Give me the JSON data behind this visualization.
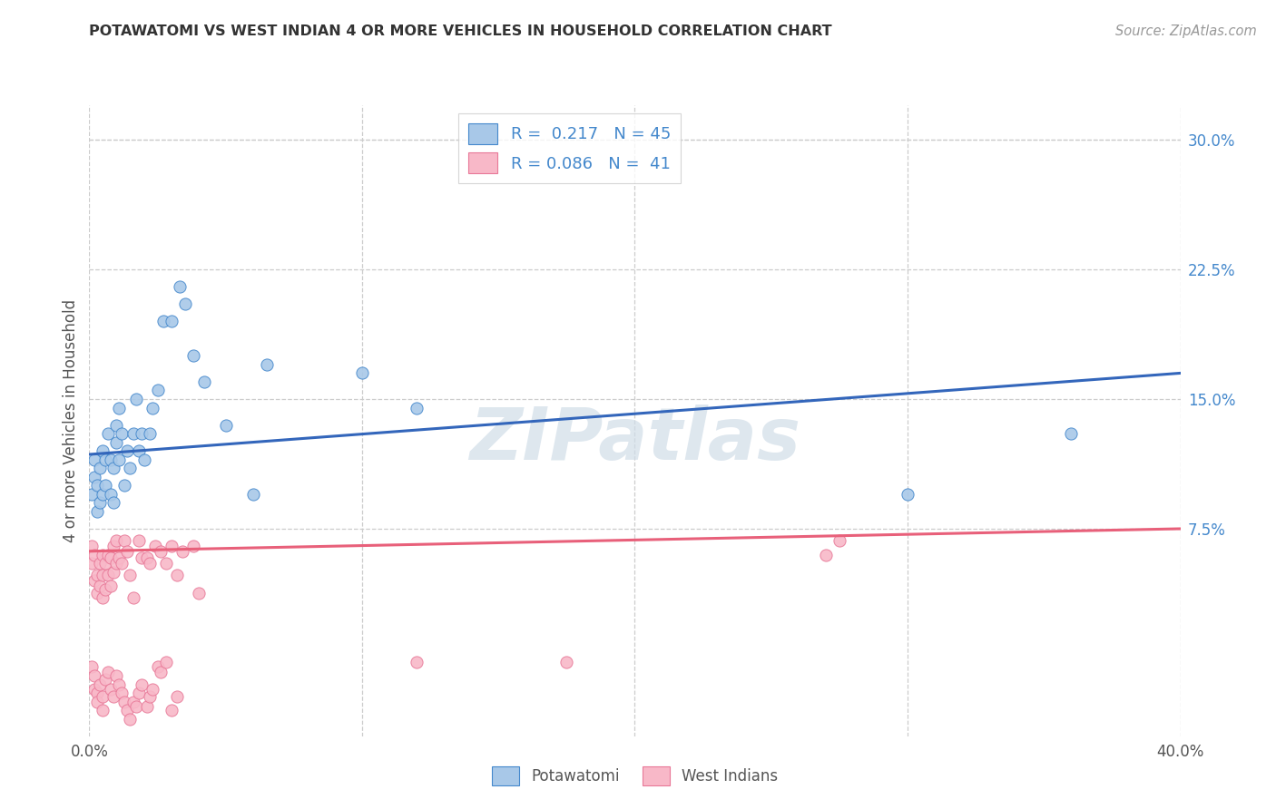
{
  "title": "POTAWATOMI VS WEST INDIAN 4 OR MORE VEHICLES IN HOUSEHOLD CORRELATION CHART",
  "source": "Source: ZipAtlas.com",
  "ylabel": "4 or more Vehicles in Household",
  "xlim": [
    0.0,
    0.4
  ],
  "ylim": [
    -0.045,
    0.32
  ],
  "xtick_positions": [
    0.0,
    0.1,
    0.2,
    0.3,
    0.4
  ],
  "xtick_labels": [
    "0.0%",
    "",
    "",
    "",
    "40.0%"
  ],
  "yticks_right": [
    0.3,
    0.225,
    0.15,
    0.075
  ],
  "ytick_labels_right": [
    "30.0%",
    "22.5%",
    "15.0%",
    "7.5%"
  ],
  "potawatomi_R": 0.217,
  "potawatomi_N": 45,
  "westindian_R": 0.086,
  "westindian_N": 41,
  "blue_scatter_color": "#a8c8e8",
  "blue_edge_color": "#4488cc",
  "blue_line_color": "#3366bb",
  "pink_scatter_color": "#f8b8c8",
  "pink_edge_color": "#e87898",
  "pink_line_color": "#e8607a",
  "watermark": "ZIPatlas",
  "potawatomi_x": [
    0.001,
    0.002,
    0.002,
    0.003,
    0.003,
    0.004,
    0.004,
    0.005,
    0.005,
    0.006,
    0.006,
    0.007,
    0.008,
    0.008,
    0.009,
    0.009,
    0.01,
    0.01,
    0.011,
    0.011,
    0.012,
    0.013,
    0.014,
    0.015,
    0.016,
    0.017,
    0.018,
    0.019,
    0.02,
    0.022,
    0.023,
    0.025,
    0.027,
    0.03,
    0.033,
    0.035,
    0.038,
    0.042,
    0.05,
    0.06,
    0.065,
    0.1,
    0.12,
    0.3,
    0.36
  ],
  "potawatomi_y": [
    0.095,
    0.105,
    0.115,
    0.085,
    0.1,
    0.11,
    0.09,
    0.095,
    0.12,
    0.1,
    0.115,
    0.13,
    0.095,
    0.115,
    0.09,
    0.11,
    0.125,
    0.135,
    0.115,
    0.145,
    0.13,
    0.1,
    0.12,
    0.11,
    0.13,
    0.15,
    0.12,
    0.13,
    0.115,
    0.13,
    0.145,
    0.155,
    0.195,
    0.195,
    0.215,
    0.205,
    0.175,
    0.16,
    0.135,
    0.095,
    0.17,
    0.165,
    0.145,
    0.095,
    0.13
  ],
  "westindian_x": [
    0.001,
    0.001,
    0.002,
    0.002,
    0.003,
    0.003,
    0.004,
    0.004,
    0.005,
    0.005,
    0.005,
    0.006,
    0.006,
    0.007,
    0.007,
    0.008,
    0.008,
    0.009,
    0.009,
    0.01,
    0.01,
    0.011,
    0.012,
    0.013,
    0.014,
    0.015,
    0.016,
    0.018,
    0.019,
    0.021,
    0.022,
    0.024,
    0.026,
    0.028,
    0.03,
    0.032,
    0.034,
    0.038,
    0.04,
    0.27,
    0.275
  ],
  "westindian_y": [
    0.055,
    0.065,
    0.045,
    0.06,
    0.038,
    0.048,
    0.042,
    0.055,
    0.035,
    0.048,
    0.06,
    0.04,
    0.055,
    0.048,
    0.06,
    0.042,
    0.058,
    0.05,
    0.065,
    0.055,
    0.068,
    0.058,
    0.055,
    0.068,
    0.062,
    0.048,
    0.035,
    0.068,
    0.058,
    0.058,
    0.055,
    0.065,
    0.062,
    0.055,
    0.065,
    0.048,
    0.062,
    0.065,
    0.038,
    0.06,
    0.068
  ],
  "westindian_bottom_x": [
    0.001,
    0.002,
    0.002,
    0.003,
    0.003,
    0.004,
    0.005,
    0.005,
    0.006,
    0.007,
    0.008,
    0.009,
    0.01,
    0.011,
    0.012,
    0.013,
    0.014,
    0.015,
    0.016,
    0.017,
    0.018,
    0.019,
    0.021,
    0.022,
    0.023,
    0.025,
    0.026,
    0.028,
    0.03,
    0.032,
    0.12,
    0.175
  ],
  "westindian_bottom_y": [
    -0.005,
    -0.01,
    -0.018,
    -0.02,
    -0.025,
    -0.015,
    -0.022,
    -0.03,
    -0.012,
    -0.008,
    -0.018,
    -0.022,
    -0.01,
    -0.015,
    -0.02,
    -0.025,
    -0.03,
    -0.035,
    -0.025,
    -0.028,
    -0.02,
    -0.015,
    -0.028,
    -0.022,
    -0.018,
    -0.005,
    -0.008,
    -0.002,
    -0.03,
    -0.022,
    -0.002,
    -0.002
  ]
}
